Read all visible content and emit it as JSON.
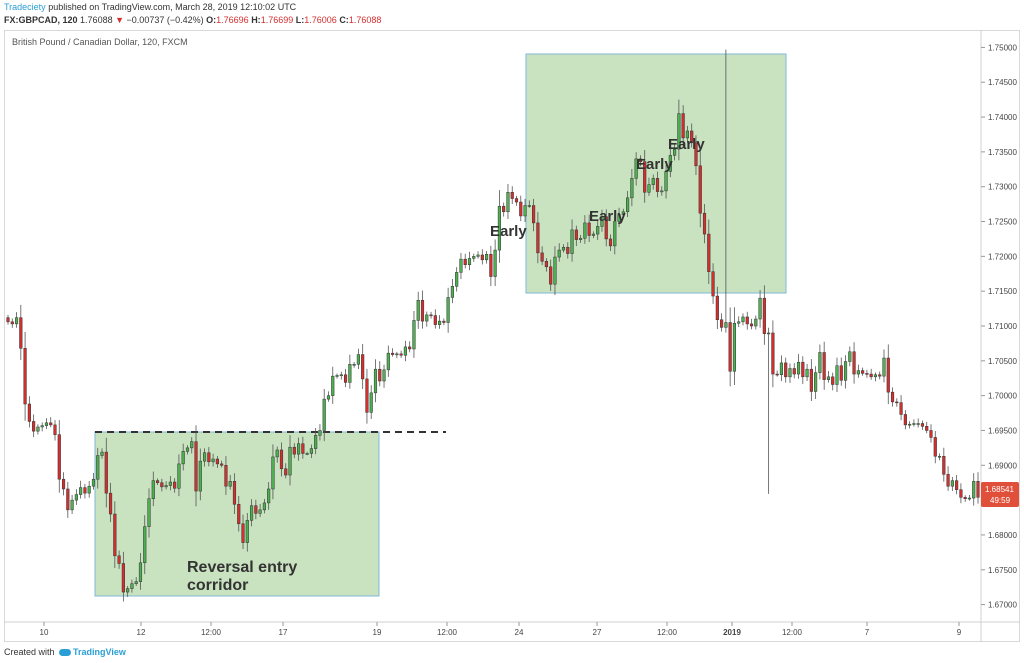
{
  "header": {
    "author": "Tradeciety",
    "published": "published on TradingView.com, March 28, 2019 12:10:02 UTC",
    "symbol": "FX:GBPCAD, 120",
    "last": "1.76088",
    "change_arrow": "▼",
    "change": "−0.00737 (−0.42%)",
    "o_label": "O:",
    "o": "1.76696",
    "h_label": "H:",
    "h": "1.76699",
    "l_label": "L:",
    "l": "1.76006",
    "c_label": "C:",
    "c": "1.76088"
  },
  "footer": {
    "created_with": "Created with",
    "brand": "TradingView"
  },
  "colors": {
    "up": "#4caf50",
    "down": "#d32f2f",
    "zone": "#a5cf96",
    "zone_border": "#7fb8d8",
    "price_tag": "#e04f3a"
  },
  "chart_data": {
    "type": "candlestick",
    "title": "British Pound / Canadian Dollar, 120, FXCM",
    "x_ticks": [
      "10",
      "12",
      "12:00",
      "17",
      "19",
      "12:00",
      "24",
      "27",
      "12:00",
      "2019",
      "12:00",
      "7",
      "9"
    ],
    "y_ticks": [
      "1.75000",
      "1.74500",
      "1.74000",
      "1.73500",
      "1.73000",
      "1.72500",
      "1.72000",
      "1.71500",
      "1.71000",
      "1.70500",
      "1.70000",
      "1.69500",
      "1.69000",
      "1.68500",
      "1.68000",
      "1.67500",
      "1.67000"
    ],
    "ylim": [
      1.6675,
      1.7525
    ],
    "last_price": "1.68541",
    "countdown": "49:59",
    "closes": [
      1.7106,
      1.7103,
      1.7112,
      1.7068,
      1.6988,
      1.6963,
      1.6949,
      1.6955,
      1.6957,
      1.6961,
      1.6958,
      1.6944,
      1.688,
      1.6866,
      1.6836,
      1.685,
      1.6858,
      1.6868,
      1.686,
      1.687,
      1.688,
      1.6914,
      1.6919,
      1.686,
      1.683,
      1.677,
      1.6759,
      1.6718,
      1.6723,
      1.673,
      1.6733,
      1.676,
      1.6812,
      1.6852,
      1.6878,
      1.6875,
      1.6869,
      1.6871,
      1.6876,
      1.6867,
      1.6902,
      1.692,
      1.6925,
      1.6934,
      1.6863,
      1.6906,
      1.6918,
      1.6905,
      1.6909,
      1.6902,
      1.69,
      1.687,
      1.6877,
      1.6844,
      1.6816,
      1.6789,
      1.6821,
      1.6842,
      1.6831,
      1.6836,
      1.6846,
      1.6866,
      1.6912,
      1.6922,
      1.6895,
      1.6886,
      1.6926,
      1.6916,
      1.6931,
      1.6917,
      1.6917,
      1.6924,
      1.6943,
      1.695,
      1.6995,
      1.7,
      1.7028,
      1.7029,
      1.703,
      1.7019,
      1.7045,
      1.7045,
      1.7059,
      1.7024,
      1.6976,
      1.7004,
      1.7038,
      1.7021,
      1.7037,
      1.7061,
      1.7059,
      1.706,
      1.7058,
      1.707,
      1.7067,
      1.7108,
      1.7137,
      1.7107,
      1.7116,
      1.7115,
      1.7102,
      1.7107,
      1.7105,
      1.7141,
      1.7157,
      1.7177,
      1.7196,
      1.7188,
      1.7197,
      1.72,
      1.7202,
      1.7195,
      1.7203,
      1.7171,
      1.7209,
      1.7272,
      1.7264,
      1.7292,
      1.7283,
      1.7278,
      1.7258,
      1.7273,
      1.7273,
      1.7248,
      1.7205,
      1.7193,
      1.7185,
      1.716,
      1.7199,
      1.7209,
      1.7213,
      1.7204,
      1.7238,
      1.7224,
      1.7226,
      1.7248,
      1.723,
      1.7232,
      1.7243,
      1.7257,
      1.7225,
      1.7215,
      1.725,
      1.726,
      1.7264,
      1.7284,
      1.7312,
      1.734,
      1.7336,
      1.7292,
      1.7303,
      1.7312,
      1.7293,
      1.7294,
      1.7322,
      1.7345,
      1.7354,
      1.7405,
      1.737,
      1.738,
      1.7363,
      1.733,
      1.7262,
      1.7232,
      1.7178,
      1.7143,
      1.7109,
      1.7098,
      1.7105,
      1.7035,
      1.7104,
      1.7106,
      1.7113,
      1.7103,
      1.71,
      1.711,
      1.714,
      1.7089,
      1.709,
      1.7031,
      1.703,
      1.7047,
      1.7027,
      1.7039,
      1.7031,
      1.7048,
      1.7027,
      1.7038,
      1.7006,
      1.7033,
      1.7062,
      1.7023,
      1.7027,
      1.7016,
      1.7043,
      1.7022,
      1.7049,
      1.7063,
      1.7031,
      1.7036,
      1.7032,
      1.7031,
      1.7027,
      1.703,
      1.7028,
      1.7054,
      1.7005,
      1.6991,
      1.699,
      1.6973,
      1.6958,
      1.6959,
      1.696,
      1.696,
      1.6956,
      1.695,
      1.694,
      1.6913,
      1.6913,
      1.6887,
      1.687,
      1.6878,
      1.6865,
      1.6854,
      1.6852,
      1.6853,
      1.6877,
      1.6854
    ]
  },
  "annotations": {
    "early_1": "Early",
    "early_2": "Early",
    "early_3": "Early",
    "early_4": "Early",
    "reversal": "Reversal entry\ncorridor"
  }
}
